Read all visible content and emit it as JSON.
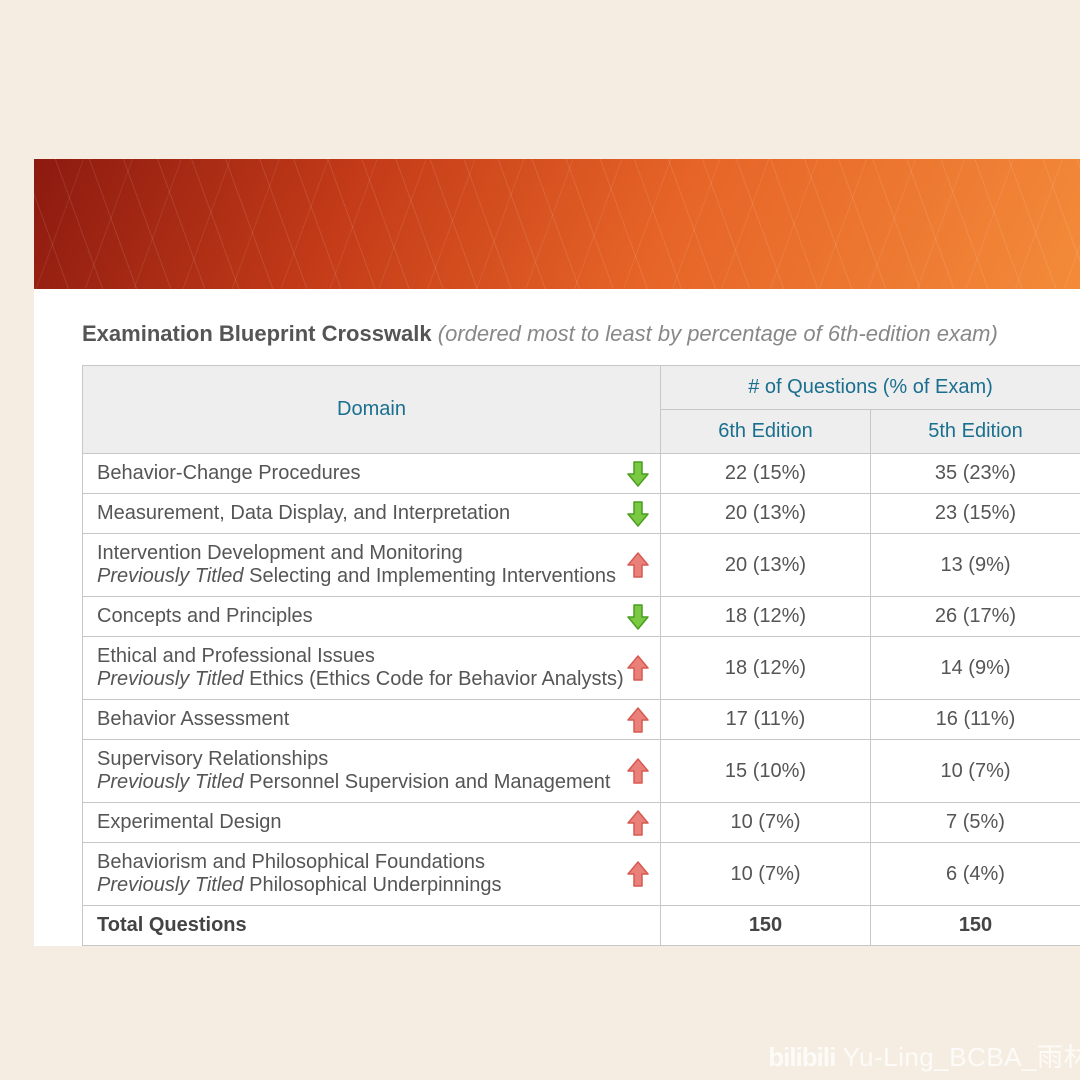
{
  "page_bg": "#f5ede2",
  "title": {
    "bold": "Examination Blueprint Crosswalk",
    "rest": " (ordered most to least by percentage of 6th-edition exam)"
  },
  "headers": {
    "domain": "Domain",
    "questions_group": "# of Questions (% of Exam)",
    "ed6": "6th Edition",
    "ed5": "5th Edition"
  },
  "arrows": {
    "up": {
      "fill": "#e98079",
      "stroke": "#d65a52"
    },
    "down": {
      "fill": "#7ac943",
      "stroke": "#4a9e1f"
    }
  },
  "rows": [
    {
      "title": "Behavior-Change Procedures",
      "prev": null,
      "ed6": "22 (15%)",
      "ed5": "35 (23%)",
      "dir": "down"
    },
    {
      "title": "Measurement, Data Display, and Interpretation",
      "prev": null,
      "ed6": "20 (13%)",
      "ed5": "23 (15%)",
      "dir": "down"
    },
    {
      "title": "Intervention Development and Monitoring",
      "prev": "Selecting and Implementing Interventions",
      "ed6": "20 (13%)",
      "ed5": "13 (9%)",
      "dir": "up"
    },
    {
      "title": "Concepts and Principles",
      "prev": null,
      "ed6": "18 (12%)",
      "ed5": "26 (17%)",
      "dir": "down"
    },
    {
      "title": "Ethical and Professional Issues",
      "prev": "Ethics (Ethics Code for Behavior Analysts)",
      "ed6": "18 (12%)",
      "ed5": "14 (9%)",
      "dir": "up"
    },
    {
      "title": "Behavior Assessment",
      "prev": null,
      "ed6": "17 (11%)",
      "ed5": "16 (11%)",
      "dir": "up"
    },
    {
      "title": "Supervisory Relationships",
      "prev": "Personnel Supervision and Management",
      "ed6": "15 (10%)",
      "ed5": "10 (7%)",
      "dir": "up"
    },
    {
      "title": "Experimental Design",
      "prev": null,
      "ed6": "10 (7%)",
      "ed5": "7 (5%)",
      "dir": "up"
    },
    {
      "title": "Behaviorism and Philosophical Foundations",
      "prev": "Philosophical Underpinnings",
      "ed6": "10 (7%)",
      "ed5": "6 (4%)",
      "dir": "up"
    }
  ],
  "total": {
    "label": "Total Questions",
    "ed6": "150",
    "ed5": "150"
  },
  "prev_label": "Previously Titled ",
  "watermark": {
    "logo": "bilibili",
    "text": " Yu-Ling_BCBA_雨林"
  }
}
